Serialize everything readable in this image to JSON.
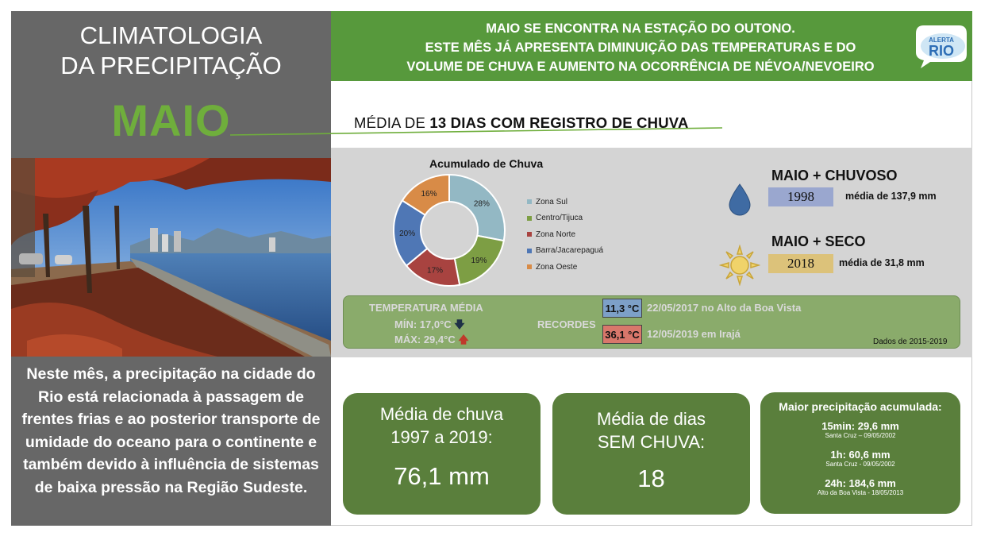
{
  "left": {
    "title_line1": "CLIMATOLOGIA",
    "title_line2": "DA PRECIPITAÇÃO",
    "month": "MAIO",
    "description": "Neste mês, a precipitação na cidade do Rio está relacionada à passagem de frentes frias e ao posterior transporte de umidade do oceano para o continente e também devido à influência de sistemas de baixa pressão na Região Sudeste."
  },
  "banner": {
    "line1": "MAIO SE ENCONTRA NA ESTAÇÃO DO OUTONO.",
    "line2": "ESTE MÊS JÁ APRESENTA DIMINUIÇÃO DAS TEMPERATURAS E DO",
    "line3": "VOLUME DE CHUVA E AUMENTO NA OCORRÊNCIA DE NÉVOA/NEVOEIRO",
    "logo_top": "ALERTA",
    "logo_bottom": "RIO"
  },
  "rain_days": {
    "prefix": "MÉDIA DE ",
    "highlight": "13 DIAS COM REGISTRO DE CHUVA"
  },
  "chart_data": {
    "type": "pie",
    "title": "Acumulado de Chuva",
    "categories": [
      "Zona Sul",
      "Centro/Tijuca",
      "Zona Norte",
      "Barra/Jacarepaguá",
      "Zona Oeste"
    ],
    "values": [
      28,
      19,
      17,
      20,
      16
    ],
    "value_labels": [
      "28%",
      "19%",
      "17%",
      "20%",
      "16%"
    ],
    "colors": [
      "#93b8c4",
      "#7d9e44",
      "#a84340",
      "#4f77b5",
      "#d88b47"
    ],
    "legend": "right",
    "donut": true
  },
  "extremes": {
    "wettest": {
      "title": "MAIO",
      "plus": "+",
      "word": "CHUVOSO",
      "year": "1998",
      "note": "média de 137,9 mm",
      "box_color": "#9aa7cf"
    },
    "driest": {
      "title": "MAIO",
      "plus": "+",
      "word": "SECO",
      "year": "2018",
      "note": "média de 31,8 mm",
      "box_color": "#dcc27a"
    },
    "icons": [
      "rain-drop-icon",
      "sun-icon"
    ]
  },
  "temperature": {
    "avg_label": "TEMPERATURA MÉDIA",
    "min_label": "MÍN: 17,0°C",
    "max_label": "MÁX: 29,4°C",
    "min_arrow": "🡇",
    "max_arrow": "🡅",
    "records_label": "RECORDES",
    "record_low": {
      "value": "11,3 °C",
      "text": "22/05/2017  no Alto da Boa Vista",
      "color": "#7da0c8"
    },
    "record_high": {
      "value": "36,1 °C",
      "text": "12/05/2019  em Irajá",
      "color": "#d9776b"
    },
    "source": "Dados de 2015-2019"
  },
  "cards": {
    "avg_rain": {
      "line1": "Média de chuva",
      "line2": "1997 a 2019:",
      "value": "76,1 mm"
    },
    "dry_days": {
      "line1": "Média  de dias",
      "line2": "SEM CHUVA:",
      "value": "18"
    },
    "max_accum": {
      "title": "Maior precipitação acumulada:",
      "items": [
        {
          "value": "15min: 29,6 mm",
          "location": "Santa Cruz – 09/05/2002"
        },
        {
          "value": "1h: 60,6 mm",
          "location": "Santa Cruz - 09/05/2002"
        },
        {
          "value": "24h: 184,6 mm",
          "location": "Alto da Boa Vista - 18/05/2013"
        }
      ]
    }
  }
}
